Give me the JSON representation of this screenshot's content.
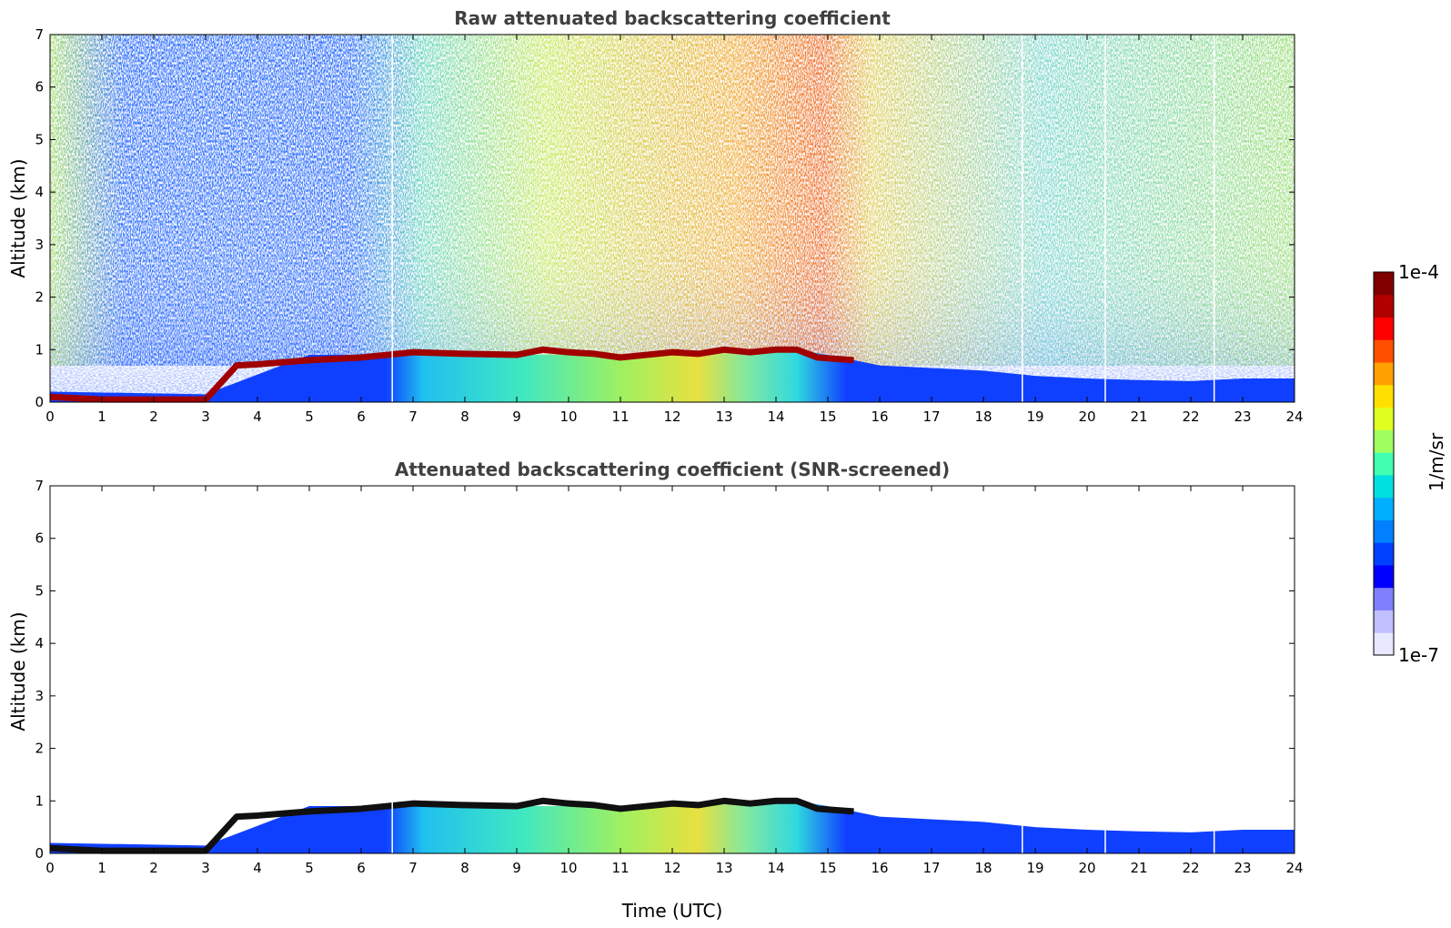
{
  "chart_data": [
    {
      "type": "heatmap",
      "title": "Raw attenuated backscattering coefficient",
      "xlabel": "",
      "ylabel": "Altitude (km)",
      "xlim": [
        0,
        24
      ],
      "ylim": [
        0,
        7
      ],
      "x_ticks": [
        0,
        1,
        2,
        3,
        4,
        5,
        6,
        7,
        8,
        9,
        10,
        11,
        12,
        13,
        14,
        15,
        16,
        17,
        18,
        19,
        20,
        21,
        22,
        23,
        24
      ],
      "y_ticks": [
        0,
        1,
        2,
        3,
        4,
        5,
        6,
        7
      ],
      "cloud_base_km": {
        "time": [
          0,
          1,
          2,
          3,
          3.6,
          4,
          5,
          6,
          7,
          8,
          9,
          9.5,
          10,
          10.5,
          11,
          11.5,
          12,
          12.5,
          13,
          13.5,
          14,
          14.4,
          14.8,
          15.5
        ],
        "altitude": [
          0.1,
          0.05,
          0.05,
          0.05,
          0.7,
          0.72,
          0.8,
          0.85,
          0.95,
          0.92,
          0.9,
          1.0,
          0.95,
          0.92,
          0.85,
          0.9,
          0.95,
          0.92,
          1.0,
          0.95,
          1.0,
          1.0,
          0.85,
          0.8
        ]
      },
      "boundary_layer_top_km": {
        "time": [
          0,
          3,
          5,
          6,
          7,
          9,
          11,
          13,
          14.4,
          15,
          16,
          17,
          18,
          19,
          20,
          21,
          22,
          23,
          24
        ],
        "altitude": [
          0.2,
          0.15,
          0.9,
          0.9,
          0.95,
          0.9,
          0.9,
          1.0,
          1.0,
          0.9,
          0.7,
          0.65,
          0.6,
          0.5,
          0.45,
          0.42,
          0.4,
          0.45,
          0.45
        ]
      },
      "gap_times": [
        6.6,
        18.75,
        20.35,
        22.45
      ]
    },
    {
      "type": "heatmap",
      "title": "Attenuated backscattering coefficient (SNR-screened)",
      "xlabel": "Time (UTC)",
      "ylabel": "Altitude (km)",
      "xlim": [
        0,
        24
      ],
      "ylim": [
        0,
        7
      ],
      "x_ticks": [
        0,
        1,
        2,
        3,
        4,
        5,
        6,
        7,
        8,
        9,
        10,
        11,
        12,
        13,
        14,
        15,
        16,
        17,
        18,
        19,
        20,
        21,
        22,
        23,
        24
      ],
      "y_ticks": [
        0,
        1,
        2,
        3,
        4,
        5,
        6,
        7
      ],
      "gap_times": [
        6.6,
        18.75,
        20.35,
        22.45
      ]
    }
  ],
  "colorbar": {
    "label": "1/m/sr",
    "max_label": "1e-4",
    "min_label": "1e-7",
    "colors": [
      "#e8e8ff",
      "#c0c0ff",
      "#8080ff",
      "#0000ff",
      "#0040ff",
      "#0080ff",
      "#00b0ff",
      "#00e0e0",
      "#40ffb0",
      "#a0ff60",
      "#e0ff20",
      "#ffe000",
      "#ffa000",
      "#ff5000",
      "#ff0000",
      "#b00000",
      "#800000"
    ]
  }
}
